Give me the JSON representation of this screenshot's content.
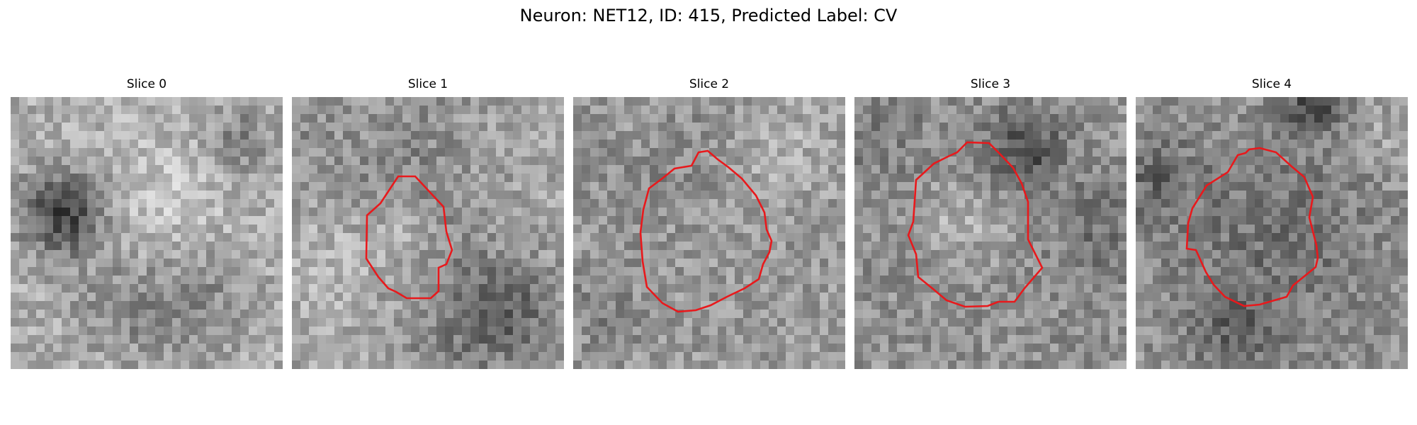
{
  "figure": {
    "title": "Neuron: NET12, ID: 415, Predicted Label: CV"
  },
  "panels": [
    {
      "title": "Slice 0",
      "contour": false,
      "seed": 11
    },
    {
      "title": "Slice 1",
      "contour": true,
      "seed": 23
    },
    {
      "title": "Slice 2",
      "contour": true,
      "seed": 37
    },
    {
      "title": "Slice 3",
      "contour": true,
      "seed": 51
    },
    {
      "title": "Slice 4",
      "contour": true,
      "seed": 67
    }
  ],
  "colors": {
    "contour": "#e8191c",
    "background": "#ffffff"
  }
}
